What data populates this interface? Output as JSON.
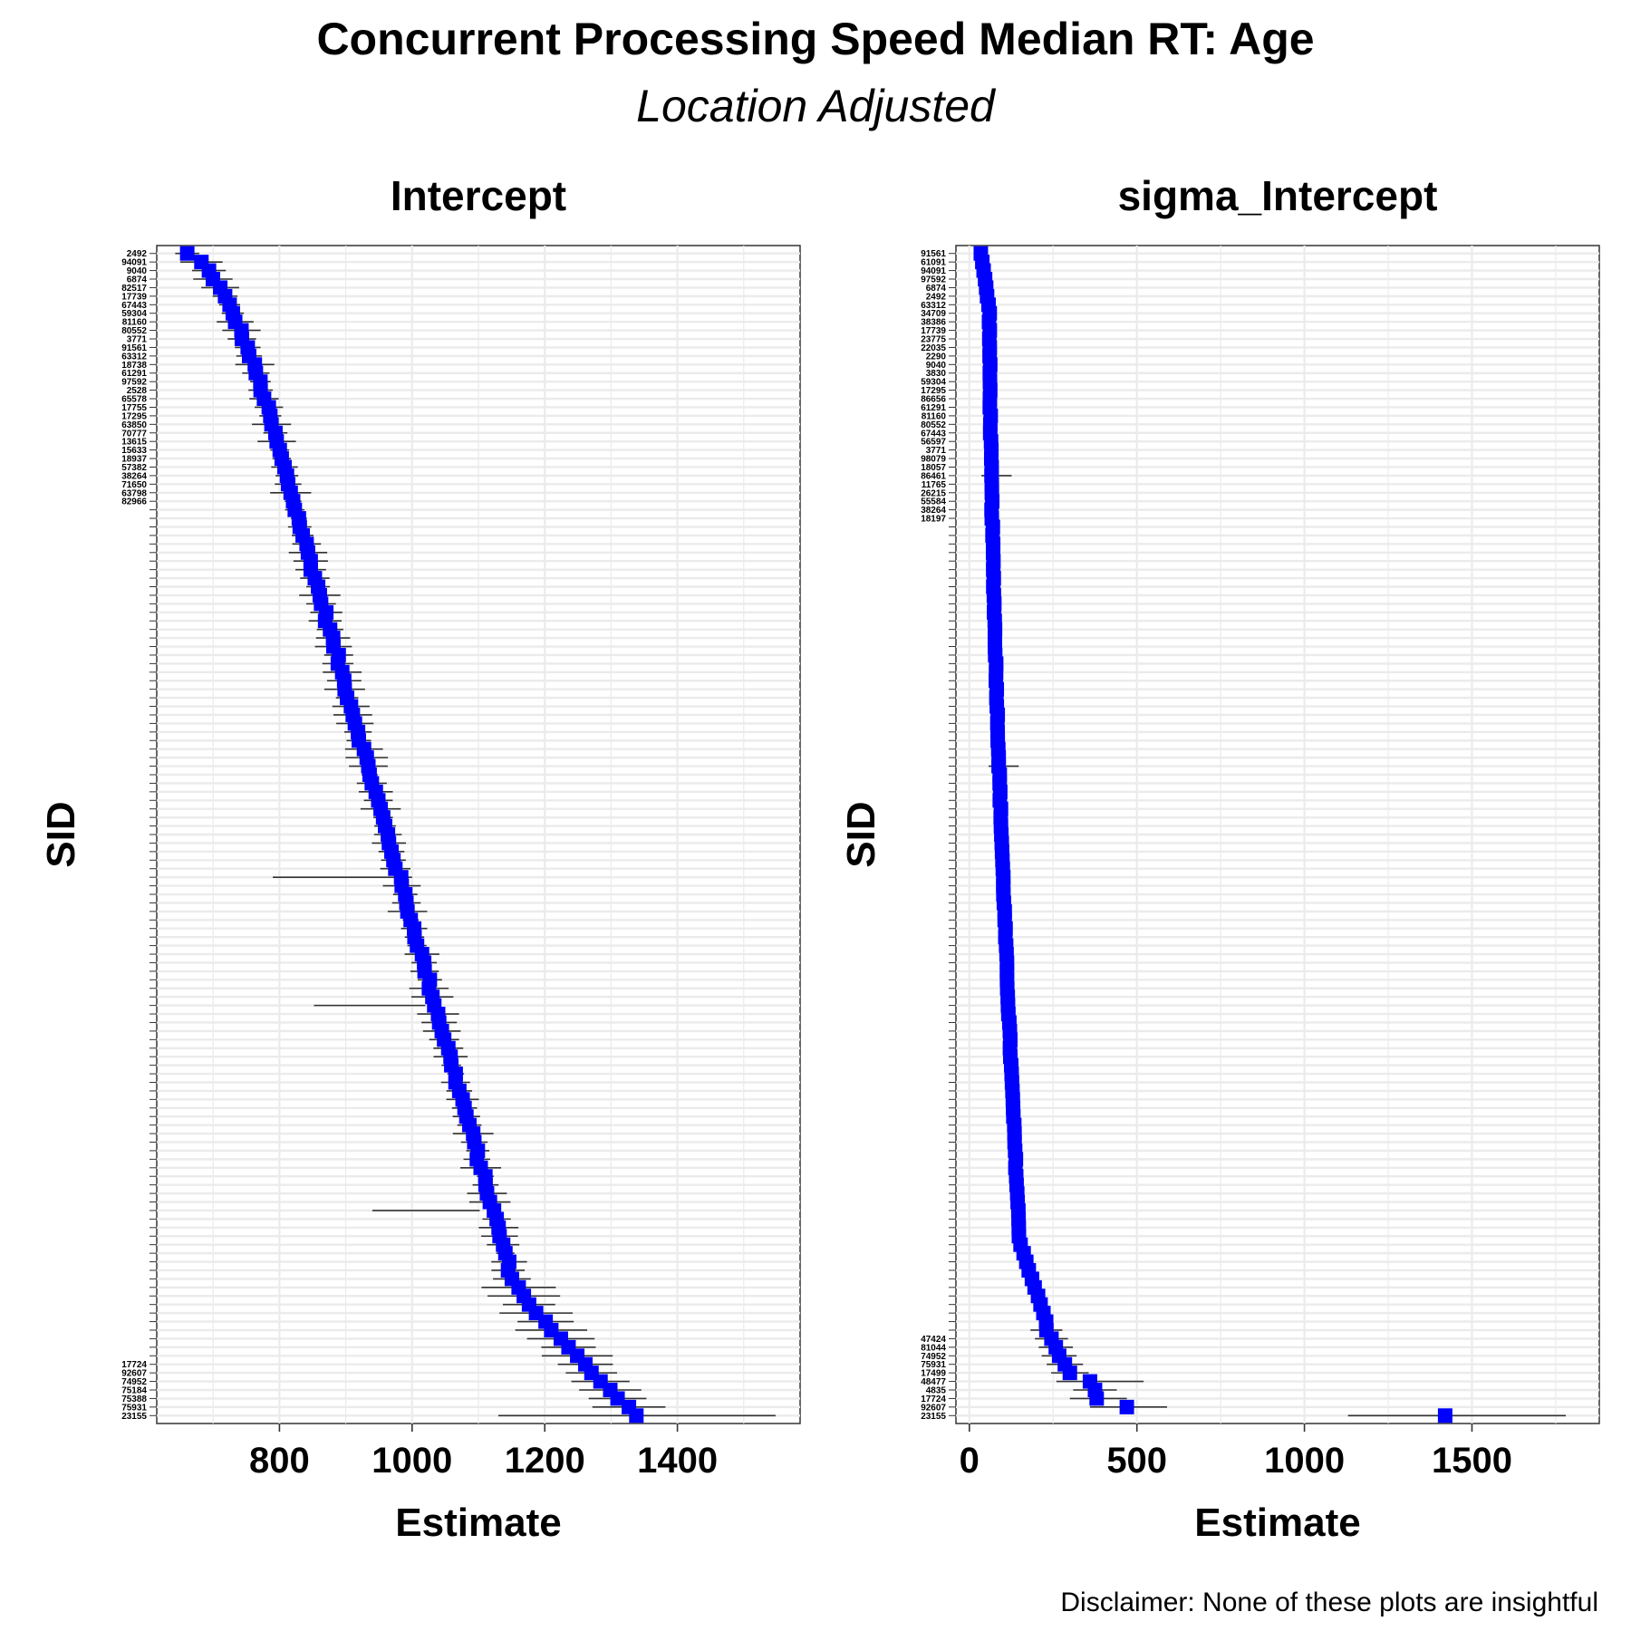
{
  "figure": {
    "title": "Concurrent Processing Speed Median RT: Age",
    "subtitle": "Location Adjusted",
    "footer": "Disclaimer: None of these plots are insightful"
  },
  "chart_data": [
    {
      "type": "forest",
      "title": "Intercept",
      "xlabel": "Estimate",
      "ylabel": "SID",
      "xlim": [
        615,
        1585
      ],
      "xticks": [
        800,
        1000,
        1200,
        1400
      ],
      "grid": true,
      "marker_color": "#0000ff",
      "range_start": 660,
      "range_end": 1340,
      "n_subjects": 137,
      "outlier_intervals": [
        {
          "index": 73,
          "low": 790,
          "high": 1000
        },
        {
          "index": 88,
          "low": 852,
          "high": 1020
        },
        {
          "index": 112,
          "low": 940,
          "high": 1102
        },
        {
          "index": 136,
          "low": 1130,
          "high": 1548
        }
      ],
      "sid_labels_top": [
        "2492",
        "94091",
        "9040",
        "6874",
        "82517",
        "17739",
        "67443",
        "59304",
        "81160",
        "80552",
        "3771",
        "91561",
        "63312",
        "18738",
        "61291",
        "97592",
        "2528",
        "65578",
        "17755",
        "17295",
        "63850",
        "70777",
        "13615",
        "15633",
        "18937",
        "57382",
        "38264",
        "71650",
        "63798",
        "82966"
      ],
      "sid_labels_bottom": [
        "17724",
        "92607",
        "74952",
        "75184",
        "75388",
        "75931",
        "23155"
      ]
    },
    {
      "type": "forest",
      "title": "sigma_Intercept",
      "xlabel": "Estimate",
      "ylabel": "SID",
      "xlim": [
        -40,
        1880
      ],
      "xticks": [
        0,
        500,
        1000,
        1500
      ],
      "grid": true,
      "marker_color": "#0000ff",
      "n_subjects": 137,
      "points_tail": [
        {
          "index": 126,
          "est": 230
        },
        {
          "index": 127,
          "est": 245
        },
        {
          "index": 128,
          "est": 258
        },
        {
          "index": 129,
          "est": 268
        },
        {
          "index": 130,
          "est": 285
        },
        {
          "index": 131,
          "est": 300
        },
        {
          "index": 132,
          "est": 360,
          "low": 260,
          "high": 520
        },
        {
          "index": 133,
          "est": 375
        },
        {
          "index": 134,
          "est": 380,
          "low": 300,
          "high": 470
        },
        {
          "index": 135,
          "est": 470,
          "low": 360,
          "high": 590
        },
        {
          "index": 136,
          "est": 1420,
          "low": 1130,
          "high": 1780
        }
      ],
      "sid_labels_top": [
        "91561",
        "61091",
        "94091",
        "97592",
        "6874",
        "2492",
        "63312",
        "34709",
        "38386",
        "17739",
        "23775",
        "22035",
        "2290",
        "9040",
        "3830",
        "59304",
        "17295",
        "86656",
        "61291",
        "81160",
        "80552",
        "67443",
        "56597",
        "3771",
        "98079",
        "18057",
        "86461",
        "11765",
        "26215",
        "55584",
        "38264",
        "18197"
      ],
      "sid_labels_bottom": [
        "47424",
        "81044",
        "74952",
        "75931",
        "17499",
        "48477",
        "4835",
        "17724",
        "92607",
        "23155"
      ]
    }
  ]
}
